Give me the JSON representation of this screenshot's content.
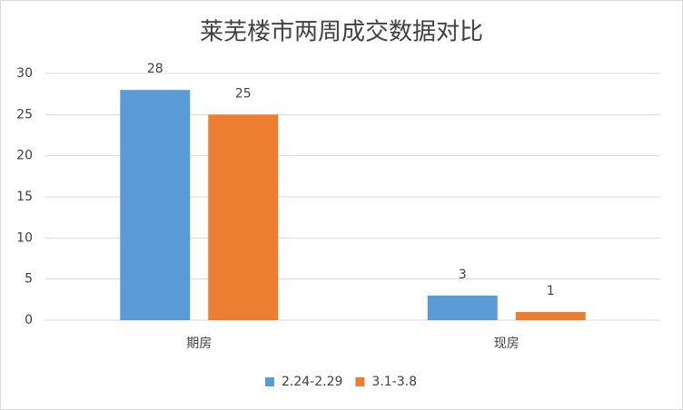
{
  "chart_data": {
    "type": "bar",
    "title": "莱芜楼市两周成交数据对比",
    "categories": [
      "期房",
      "现房"
    ],
    "series": [
      {
        "name": "2.24-2.29",
        "color": "#5b9bd5",
        "values": [
          28,
          3
        ]
      },
      {
        "name": "3.1-3.8",
        "color": "#ed7d31",
        "values": [
          25,
          1
        ]
      }
    ],
    "ylim": [
      0,
      30
    ],
    "yticks": [
      0,
      5,
      10,
      15,
      20,
      25,
      30
    ],
    "grid": true,
    "legend": "bottom"
  }
}
